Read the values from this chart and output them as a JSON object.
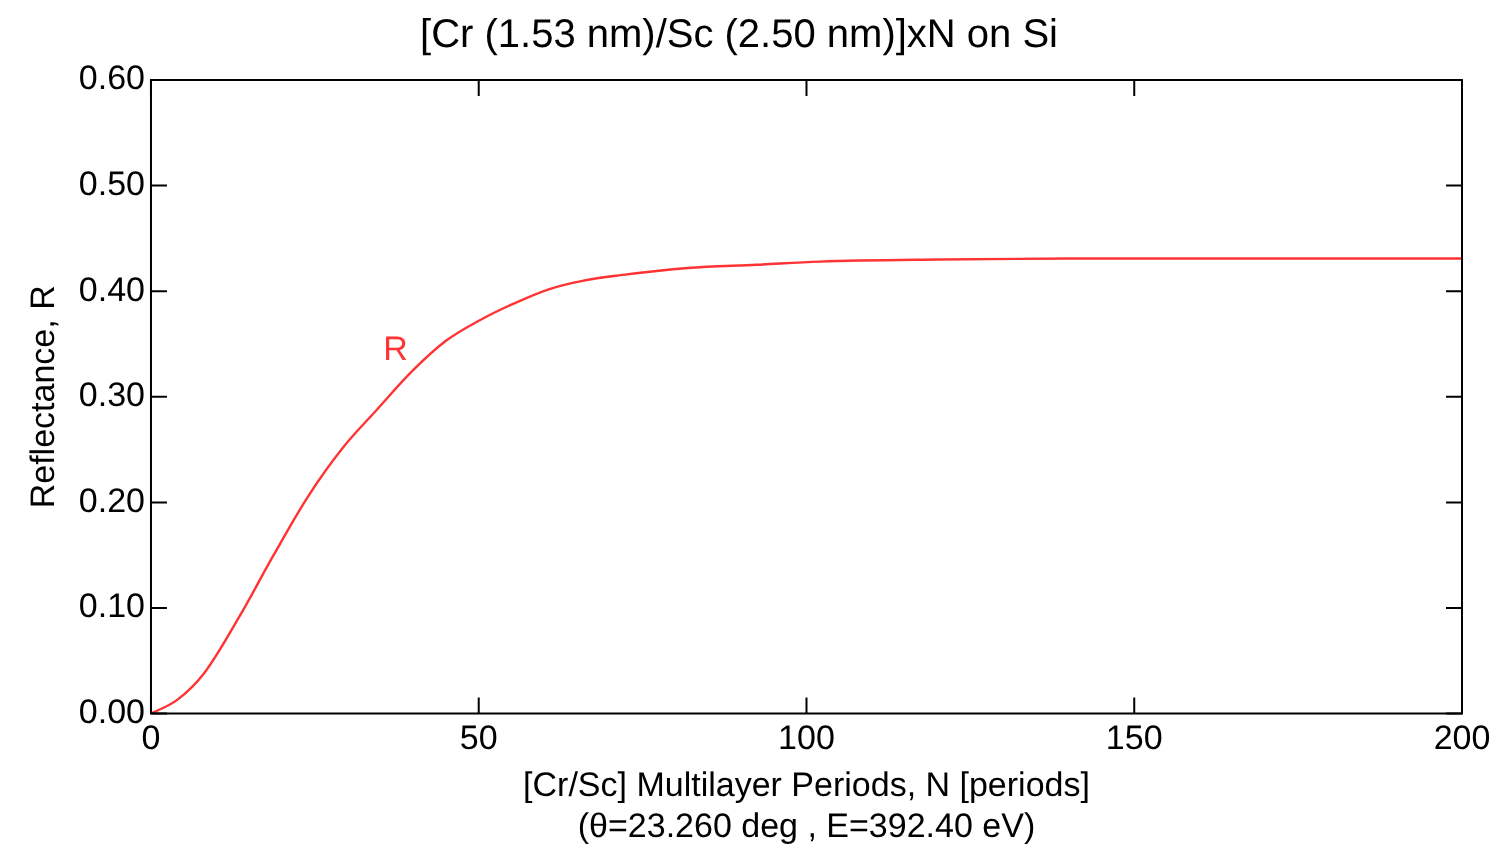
{
  "chart_data": {
    "type": "line",
    "title": "[Cr (1.53 nm)/Sc (2.50 nm)]xN on Si",
    "xlabel": "[Cr/Sc] Multilayer Periods, N [periods]\n(θ=23.260 deg , E=392.40 eV)",
    "ylabel": "Reflectance, R",
    "x": [
      0,
      4,
      8.2,
      13.5,
      18.7,
      24,
      29.3,
      34.5,
      39.8,
      45,
      50.3,
      55.6,
      60.8,
      66,
      71.4,
      81.9,
      92.4,
      102,
      120,
      140,
      160,
      200
    ],
    "series": [
      {
        "name": "R",
        "color": "#ff3333",
        "values": [
          0,
          0.013,
          0.039,
          0.092,
          0.15,
          0.206,
          0.252,
          0.288,
          0.324,
          0.353,
          0.373,
          0.389,
          0.402,
          0.41,
          0.415,
          0.422,
          0.425,
          0.428,
          0.43,
          0.431,
          0.431,
          0.431
        ]
      }
    ],
    "xlim": [
      0,
      200
    ],
    "xticks": [
      0,
      50,
      100,
      150,
      200
    ],
    "ylim": [
      0,
      0.6
    ],
    "yticks": [
      {
        "value": 0,
        "label": "0.00"
      },
      {
        "value": 0.1,
        "label": "0.10"
      },
      {
        "value": 0.2,
        "label": "0.20"
      },
      {
        "value": 0.3,
        "label": "0.30"
      },
      {
        "value": 0.4,
        "label": "0.40"
      },
      {
        "value": 0.5,
        "label": "0.50"
      },
      {
        "value": 0.6,
        "label": "0.60"
      }
    ],
    "grid": false,
    "legend": false,
    "marker": "none",
    "line_style": "solid"
  }
}
